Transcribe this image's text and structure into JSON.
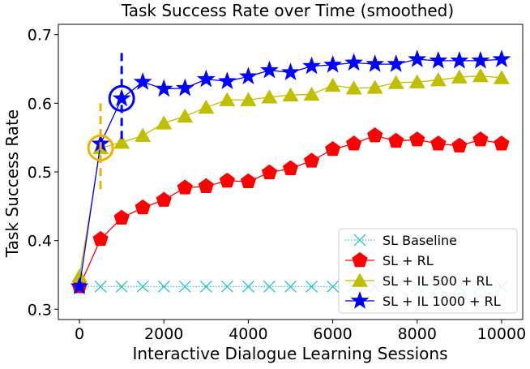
{
  "chart_data": {
    "type": "line",
    "title": "Task Success Rate over Time (smoothed)",
    "xlabel": "Interactive Dialogue Learning Sessions",
    "ylabel": "Task Success Rate",
    "xlim": [
      -500,
      10500
    ],
    "ylim": [
      0.285,
      0.715
    ],
    "xticks": [
      0,
      2000,
      4000,
      6000,
      8000,
      10000
    ],
    "yticks": [
      0.3,
      0.4,
      0.5,
      0.6,
      0.7
    ],
    "ytick_labels": [
      "0.3",
      "0.4",
      "0.5",
      "0.6",
      "0.7"
    ],
    "grid": false,
    "legend_position": "bottom-right",
    "x": [
      0,
      500,
      1000,
      1500,
      2000,
      2500,
      3000,
      3500,
      4000,
      4500,
      5000,
      5500,
      6000,
      6500,
      7000,
      7500,
      8000,
      8500,
      9000,
      9500,
      10000
    ],
    "series": [
      {
        "name": "SL Baseline",
        "color": "#2ec4c4",
        "marker": "x",
        "linestyle": "dotted",
        "values": [
          0.333,
          0.333,
          0.333,
          0.333,
          0.333,
          0.333,
          0.333,
          0.333,
          0.333,
          0.333,
          0.333,
          0.333,
          0.333,
          0.333,
          0.333,
          0.333,
          0.333,
          0.333,
          0.333,
          0.333,
          0.333
        ]
      },
      {
        "name": "SL + RL",
        "color": "#ff0000",
        "marker": "pentagon",
        "linestyle": "solid",
        "values": [
          0.333,
          0.402,
          0.433,
          0.448,
          0.459,
          0.477,
          0.479,
          0.487,
          0.486,
          0.499,
          0.505,
          0.516,
          0.533,
          0.541,
          0.553,
          0.545,
          0.547,
          0.541,
          0.538,
          0.547,
          0.541
        ]
      },
      {
        "name": "SL + IL 500 + RL",
        "color": "#bfbf00",
        "marker": "triangle",
        "linestyle": "solid",
        "values": [
          0.348,
          0.535,
          0.543,
          0.553,
          0.571,
          0.581,
          0.594,
          0.605,
          0.605,
          0.609,
          0.612,
          0.613,
          0.626,
          0.622,
          0.623,
          0.63,
          0.631,
          0.634,
          0.638,
          0.64,
          0.637
        ]
      },
      {
        "name": "SL + IL 1000 + RL",
        "color": "#0000ff",
        "marker": "star",
        "linestyle": "solid",
        "values": [
          0.333,
          0.541,
          0.607,
          0.631,
          0.621,
          0.622,
          0.635,
          0.632,
          0.639,
          0.648,
          0.645,
          0.654,
          0.656,
          0.659,
          0.657,
          0.657,
          0.664,
          0.662,
          0.662,
          0.662,
          0.664
        ]
      }
    ],
    "annotations": [
      {
        "type": "circle",
        "x": 500,
        "y": 0.535,
        "color": "#f0b000"
      },
      {
        "type": "dashed-vline",
        "x": 500,
        "y_from": 0.475,
        "y_to": 0.6,
        "color": "#f0b000"
      },
      {
        "type": "circle",
        "x": 1000,
        "y": 0.607,
        "color": "#0000ff"
      },
      {
        "type": "dashed-vline",
        "x": 1000,
        "y_from": 0.548,
        "y_to": 0.675,
        "color": "#0000ff"
      }
    ]
  }
}
